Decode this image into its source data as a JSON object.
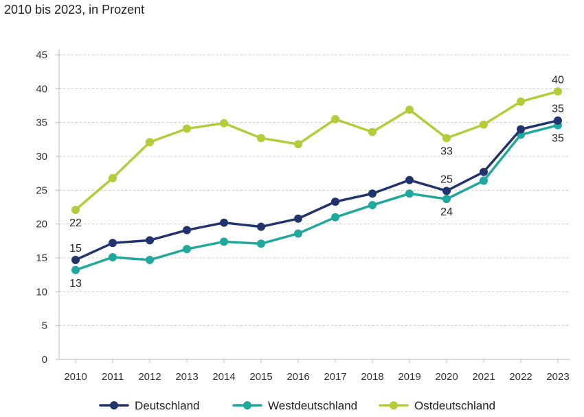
{
  "chart_data": {
    "type": "line",
    "subtitle": "2010 bis 2023, in Prozent",
    "x": [
      "2010",
      "2011",
      "2012",
      "2013",
      "2014",
      "2015",
      "2016",
      "2017",
      "2018",
      "2019",
      "2020",
      "2021",
      "2022",
      "2023"
    ],
    "ylim": [
      0,
      45
    ],
    "yticks": [
      0,
      5,
      10,
      15,
      20,
      25,
      30,
      35,
      40,
      45
    ],
    "grid": "horizontal-dashed",
    "legend_position": "bottom",
    "series": [
      {
        "name": "Deutschland",
        "color": "#22346e",
        "values": [
          14.7,
          17.2,
          17.6,
          19.1,
          20.2,
          19.6,
          20.8,
          23.3,
          24.5,
          26.5,
          24.9,
          27.7,
          34.0,
          35.3
        ]
      },
      {
        "name": "Westdeutschland",
        "color": "#1fa89e",
        "values": [
          13.2,
          15.1,
          14.7,
          16.3,
          17.4,
          17.1,
          18.6,
          21.0,
          22.8,
          24.5,
          23.7,
          26.4,
          33.2,
          34.6
        ]
      },
      {
        "name": "Ostdeutschland",
        "color": "#b5cc3a",
        "values": [
          22.1,
          26.8,
          32.1,
          34.1,
          34.9,
          32.7,
          31.8,
          35.5,
          33.6,
          36.9,
          32.7,
          34.7,
          38.1,
          39.6
        ]
      }
    ],
    "annotations": [
      {
        "series": 0,
        "index": 0,
        "text": "15",
        "pos": "above"
      },
      {
        "series": 1,
        "index": 0,
        "text": "13",
        "pos": "below"
      },
      {
        "series": 2,
        "index": 0,
        "text": "22",
        "pos": "below"
      },
      {
        "series": 0,
        "index": 10,
        "text": "25",
        "pos": "above"
      },
      {
        "series": 1,
        "index": 10,
        "text": "24",
        "pos": "below"
      },
      {
        "series": 2,
        "index": 10,
        "text": "33",
        "pos": "below"
      },
      {
        "series": 2,
        "index": 13,
        "text": "40",
        "pos": "above"
      },
      {
        "series": 0,
        "index": 13,
        "text": "35",
        "pos": "above"
      },
      {
        "series": 1,
        "index": 13,
        "text": "35",
        "pos": "below"
      }
    ]
  }
}
